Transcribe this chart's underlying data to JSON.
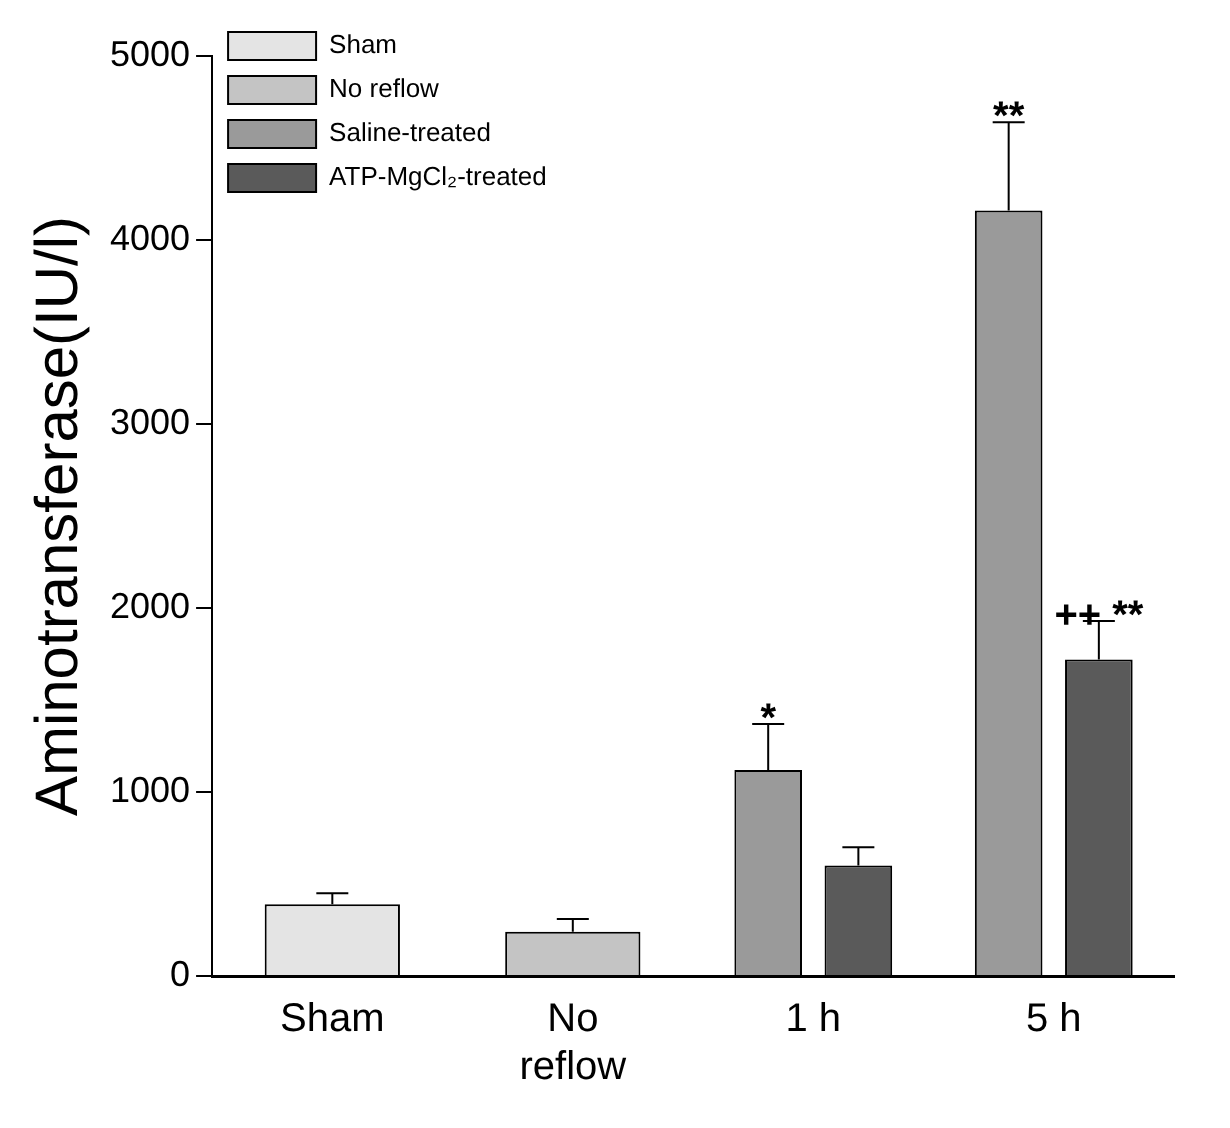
{
  "chart_data": {
    "type": "bar",
    "ylabel": "Aminotransferase(IU/l)",
    "categories": [
      "Sham",
      "No reflow",
      "1 h",
      "5 h"
    ],
    "series": [
      {
        "name": "Sham",
        "color": "#e4e4e4",
        "values": [
          390,
          null,
          null,
          null
        ],
        "errors": [
          [
            390,
            450
          ],
          null,
          null,
          null
        ]
      },
      {
        "name": "No reflow",
        "color": "#c4c4c4",
        "values": [
          null,
          240,
          null,
          null
        ],
        "errors": [
          null,
          [
            240,
            310
          ],
          null,
          null
        ]
      },
      {
        "name": "Saline-treated",
        "color": "#9a9a9a",
        "values": [
          null,
          null,
          1120,
          4160
        ],
        "errors": [
          null,
          null,
          [
            1120,
            1370
          ],
          [
            4160,
            4640
          ]
        ],
        "value_labels": [
          null,
          null,
          "*",
          "**"
        ]
      },
      {
        "name": "ATP-MgCl₂-treated",
        "color": "#5a5a5a",
        "values": [
          null,
          null,
          600,
          1720
        ],
        "errors": [
          null,
          null,
          [
            600,
            700
          ],
          [
            1720,
            1930
          ]
        ],
        "value_labels": [
          null,
          null,
          null,
          "++ **"
        ]
      }
    ],
    "ylim": [
      0,
      5000
    ],
    "yticks": [
      0,
      1000,
      2000,
      3000,
      4000,
      5000
    ],
    "grid": false,
    "legend": "top left"
  }
}
